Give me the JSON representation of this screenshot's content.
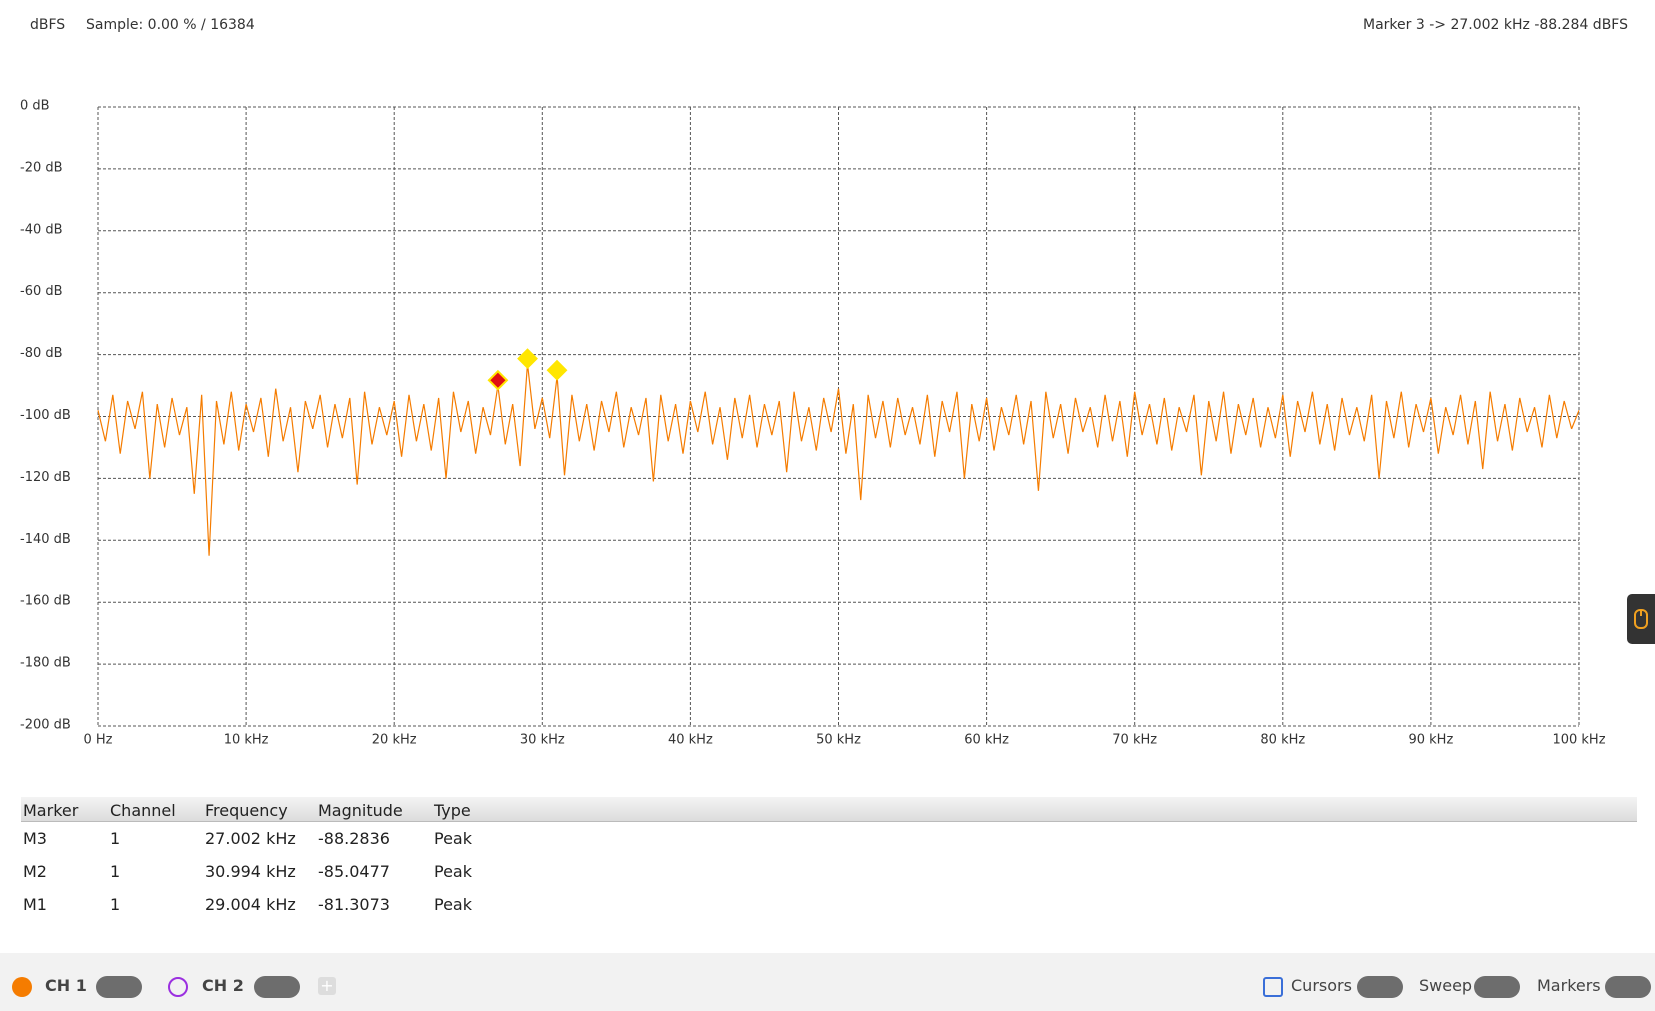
{
  "header": {
    "unit": "dBFS",
    "sample": "Sample: 0.00 % / 16384",
    "marker_readout": "Marker 3 -> 27.002 kHz -88.284 dBFS"
  },
  "chart_data": {
    "type": "line",
    "xlim": [
      0,
      100
    ],
    "ylim": [
      -200,
      0
    ],
    "xticks": [
      {
        "value": 0,
        "label": "0 Hz"
      },
      {
        "value": 10,
        "label": "10 kHz"
      },
      {
        "value": 20,
        "label": "20 kHz"
      },
      {
        "value": 30,
        "label": "30 kHz"
      },
      {
        "value": 40,
        "label": "40 kHz"
      },
      {
        "value": 50,
        "label": "50 kHz"
      },
      {
        "value": 60,
        "label": "60 kHz"
      },
      {
        "value": 70,
        "label": "70 kHz"
      },
      {
        "value": 80,
        "label": "80 kHz"
      },
      {
        "value": 90,
        "label": "90 kHz"
      },
      {
        "value": 100,
        "label": "100 kHz"
      }
    ],
    "yticks": [
      {
        "value": 0,
        "label": "0 dB"
      },
      {
        "value": -20,
        "label": "-20 dB"
      },
      {
        "value": -40,
        "label": "-40 dB"
      },
      {
        "value": -60,
        "label": "-60 dB"
      },
      {
        "value": -80,
        "label": "-80 dB"
      },
      {
        "value": -100,
        "label": "-100 dB"
      },
      {
        "value": -120,
        "label": "-120 dB"
      },
      {
        "value": -140,
        "label": "-140 dB"
      },
      {
        "value": -160,
        "label": "-160 dB"
      },
      {
        "value": -180,
        "label": "-180 dB"
      },
      {
        "value": -200,
        "label": "-200 dB"
      }
    ],
    "grid": true,
    "x": [
      0,
      0.5,
      1,
      1.5,
      2,
      2.5,
      3,
      3.5,
      4,
      4.5,
      5,
      5.5,
      6,
      6.5,
      7,
      7.5,
      8,
      8.5,
      9,
      9.5,
      10,
      10.5,
      11,
      11.5,
      12,
      12.5,
      13,
      13.5,
      14,
      14.5,
      15,
      15.5,
      16,
      16.5,
      17,
      17.5,
      18,
      18.5,
      19,
      19.5,
      20,
      20.5,
      21,
      21.5,
      22,
      22.5,
      23,
      23.5,
      24,
      24.5,
      25,
      25.5,
      26,
      26.5,
      27,
      27.5,
      28,
      28.5,
      29,
      29.5,
      30,
      30.5,
      31,
      31.5,
      32,
      32.5,
      33,
      33.5,
      34,
      34.5,
      35,
      35.5,
      36,
      36.5,
      37,
      37.5,
      38,
      38.5,
      39,
      39.5,
      40,
      40.5,
      41,
      41.5,
      42,
      42.5,
      43,
      43.5,
      44,
      44.5,
      45,
      45.5,
      46,
      46.5,
      47,
      47.5,
      48,
      48.5,
      49,
      49.5,
      50,
      50.5,
      51,
      51.5,
      52,
      52.5,
      53,
      53.5,
      54,
      54.5,
      55,
      55.5,
      56,
      56.5,
      57,
      57.5,
      58,
      58.5,
      59,
      59.5,
      60,
      60.5,
      61,
      61.5,
      62,
      62.5,
      63,
      63.5,
      64,
      64.5,
      65,
      65.5,
      66,
      66.5,
      67,
      67.5,
      68,
      68.5,
      69,
      69.5,
      70,
      70.5,
      71,
      71.5,
      72,
      72.5,
      73,
      73.5,
      74,
      74.5,
      75,
      75.5,
      76,
      76.5,
      77,
      77.5,
      78,
      78.5,
      79,
      79.5,
      80,
      80.5,
      81,
      81.5,
      82,
      82.5,
      83,
      83.5,
      84,
      84.5,
      85,
      85.5,
      86,
      86.5,
      87,
      87.5,
      88,
      88.5,
      89,
      89.5,
      90,
      90.5,
      91,
      91.5,
      92,
      92.5,
      93,
      93.5,
      94,
      94.5,
      95,
      95.5,
      96,
      96.5,
      97,
      97.5,
      98,
      98.5,
      99,
      99.5,
      100
    ],
    "series": [
      {
        "color": "#f57c00",
        "values": [
          -98,
          -108,
          -93,
          -112,
          -95,
          -104,
          -92,
          -120,
          -96,
          -110,
          -94,
          -106,
          -97,
          -125,
          -93,
          -145,
          -95,
          -109,
          -92,
          -111,
          -96,
          -105,
          -94,
          -113,
          -91,
          -108,
          -97,
          -118,
          -95,
          -104,
          -93,
          -110,
          -96,
          -107,
          -94,
          -122,
          -92,
          -109,
          -97,
          -106,
          -95,
          -113,
          -93,
          -108,
          -96,
          -111,
          -94,
          -120,
          -92,
          -105,
          -95,
          -112,
          -97,
          -106,
          -90,
          -109,
          -96,
          -116,
          -83,
          -104,
          -94,
          -107,
          -87,
          -119,
          -93,
          -108,
          -96,
          -111,
          -95,
          -105,
          -92,
          -110,
          -97,
          -106,
          -94,
          -121,
          -93,
          -108,
          -96,
          -112,
          -95,
          -105,
          -92,
          -109,
          -97,
          -114,
          -94,
          -107,
          -93,
          -110,
          -96,
          -106,
          -95,
          -118,
          -92,
          -108,
          -97,
          -111,
          -94,
          -105,
          -91,
          -112,
          -96,
          -127,
          -93,
          -107,
          -95,
          -110,
          -94,
          -106,
          -97,
          -109,
          -93,
          -113,
          -95,
          -105,
          -92,
          -120,
          -96,
          -108,
          -94,
          -111,
          -97,
          -106,
          -93,
          -109,
          -95,
          -124,
          -92,
          -107,
          -96,
          -112,
          -94,
          -105,
          -97,
          -110,
          -93,
          -108,
          -95,
          -113,
          -92,
          -106,
          -96,
          -109,
          -94,
          -111,
          -97,
          -105,
          -93,
          -119,
          -95,
          -108,
          -92,
          -112,
          -96,
          -106,
          -94,
          -110,
          -97,
          -107,
          -93,
          -113,
          -95,
          -105,
          -92,
          -109,
          -96,
          -111,
          -94,
          -106,
          -97,
          -108,
          -93,
          -120,
          -95,
          -107,
          -92,
          -110,
          -96,
          -105,
          -94,
          -112,
          -97,
          -106,
          -93,
          -109,
          -95,
          -117,
          -92,
          -108,
          -96,
          -111,
          -94,
          -105,
          -97,
          -110,
          -93,
          -107,
          -95,
          -104,
          -98
        ]
      }
    ],
    "markers": {
      "x": [
        27.002,
        29.004,
        30.994
      ],
      "values": [
        -88.2836,
        -81.3073,
        -85.0477
      ],
      "colors": [
        "#e01010",
        "#ffe600",
        "#ffe600"
      ]
    }
  },
  "table": {
    "columns": [
      "Marker",
      "Channel",
      "Frequency",
      "Magnitude",
      "Type"
    ],
    "rows": [
      [
        "M3",
        "1",
        "27.002 kHz",
        "-88.2836",
        "Peak"
      ],
      [
        "M2",
        "1",
        "30.994 kHz",
        "-85.0477",
        "Peak"
      ],
      [
        "M1",
        "1",
        "29.004 kHz",
        "-81.3073",
        "Peak"
      ]
    ]
  },
  "toolbar": {
    "ch1": "CH 1",
    "ch2": "CH 2",
    "cursors": "Cursors",
    "sweep": "Sweep",
    "markers": "Markers"
  }
}
